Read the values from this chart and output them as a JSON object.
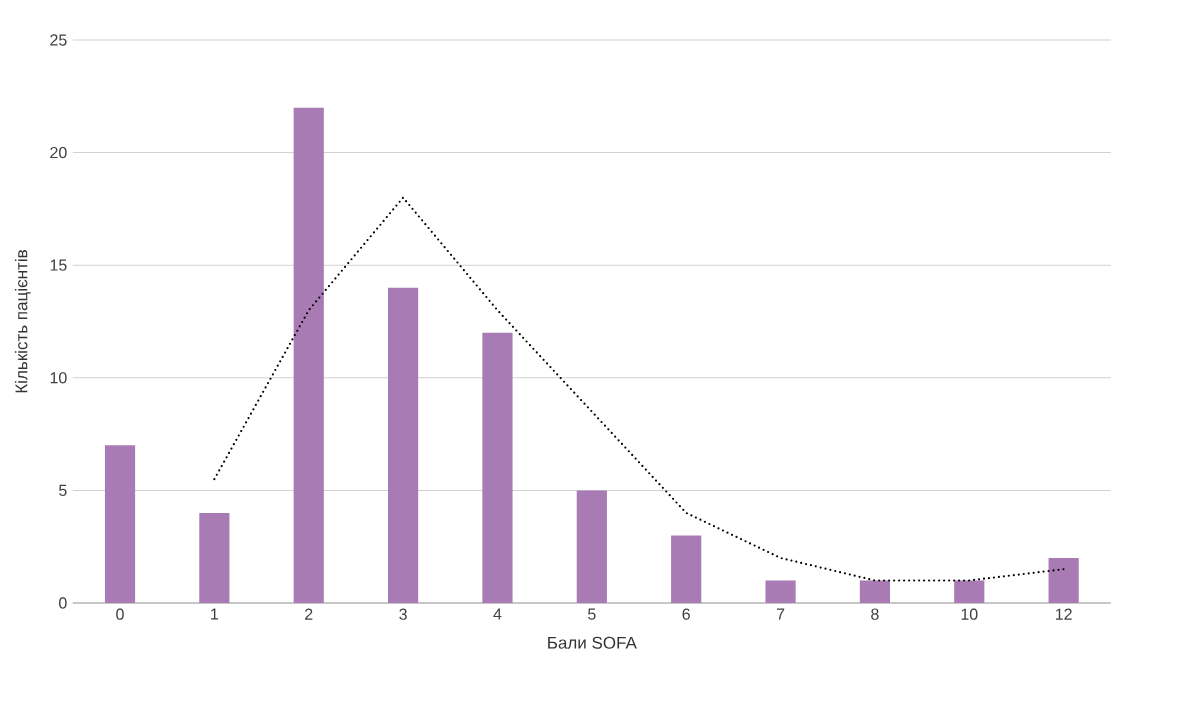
{
  "chart_data": {
    "type": "bar",
    "xlabel": "Бали SOFA",
    "ylabel": "Кількість пацієнтів",
    "categories": [
      "0",
      "1",
      "2",
      "3",
      "4",
      "5",
      "6",
      "7",
      "8",
      "10",
      "12"
    ],
    "series": [
      {
        "color": "#a97bb5",
        "values": [
          7,
          4,
          22,
          14,
          12,
          5,
          3,
          1,
          1,
          1,
          2
        ]
      },
      {
        "type": "line",
        "color": "#000000",
        "line_style": "dotted",
        "marker": "none",
        "values": [
          null,
          5.5,
          13,
          18,
          13,
          8.5,
          4,
          2,
          1,
          1,
          1.5
        ]
      }
    ],
    "ylim": [
      0,
      25
    ],
    "yticks": [
      0,
      5,
      10,
      15,
      20,
      25
    ],
    "grid": "y"
  }
}
